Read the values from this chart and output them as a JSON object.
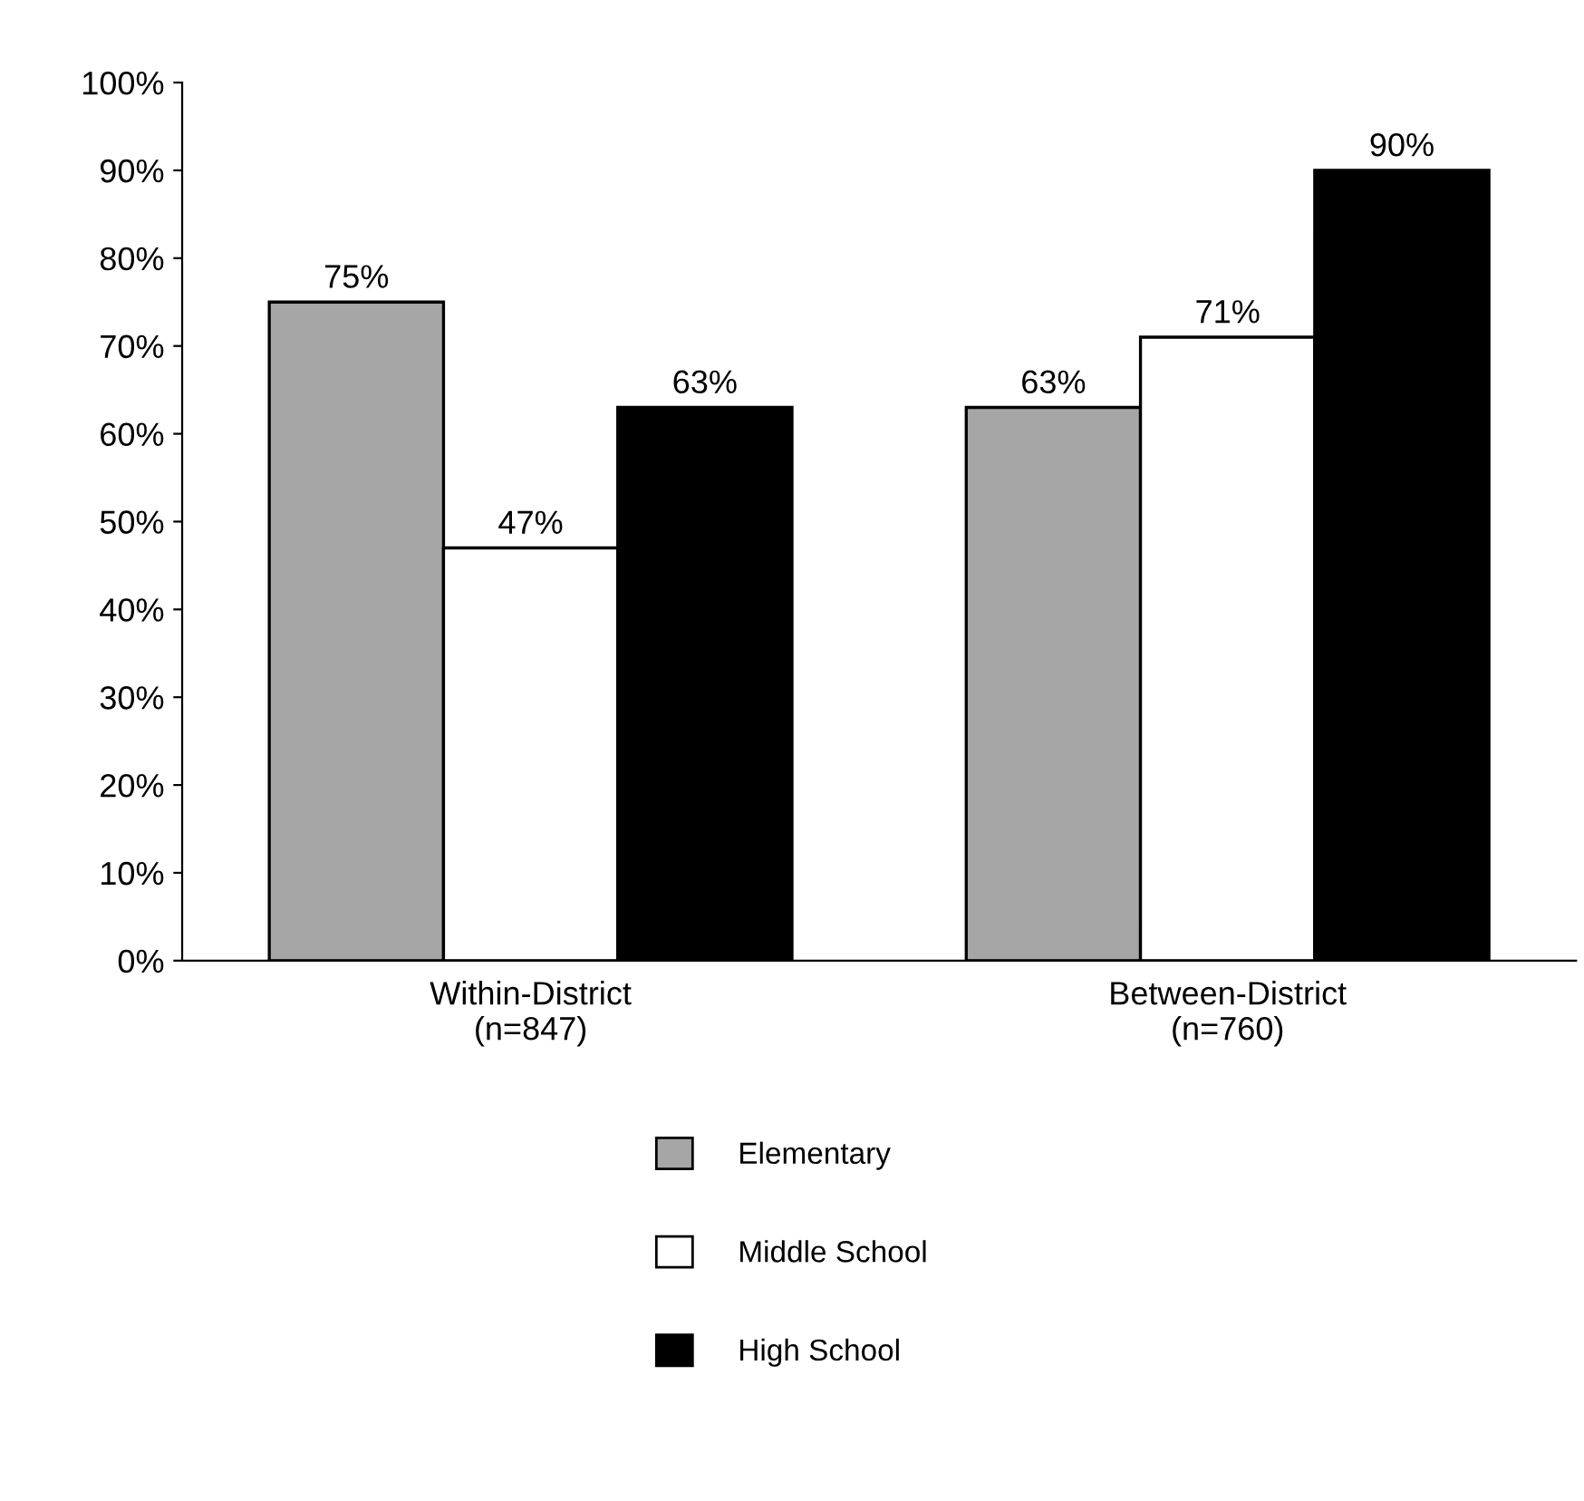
{
  "chart_data": {
    "type": "bar",
    "categories": [
      "Within-District\n(n=847)",
      "Between-District\n(n=760)"
    ],
    "series": [
      {
        "name": "Elementary",
        "color": "#a6a6a6",
        "values": [
          75,
          63
        ],
        "value_labels": [
          "75%",
          "63%"
        ]
      },
      {
        "name": "Middle School",
        "color": "#ffffff",
        "values": [
          47,
          71
        ],
        "value_labels": [
          "47%",
          "71%"
        ]
      },
      {
        "name": "High School",
        "color": "#000000",
        "values": [
          63,
          90
        ],
        "value_labels": [
          "63%",
          "90%"
        ]
      }
    ],
    "ylim": [
      0,
      100
    ],
    "yticks": [
      {
        "value": 0,
        "label": "0%"
      },
      {
        "value": 10,
        "label": "10%"
      },
      {
        "value": 20,
        "label": "20%"
      },
      {
        "value": 30,
        "label": "30%"
      },
      {
        "value": 40,
        "label": "40%"
      },
      {
        "value": 50,
        "label": "50%"
      },
      {
        "value": 60,
        "label": "60%"
      },
      {
        "value": 70,
        "label": "70%"
      },
      {
        "value": 80,
        "label": "80%"
      },
      {
        "value": 90,
        "label": "90%"
      },
      {
        "value": 100,
        "label": "100%"
      }
    ],
    "grid": false,
    "legend": "bottom"
  }
}
